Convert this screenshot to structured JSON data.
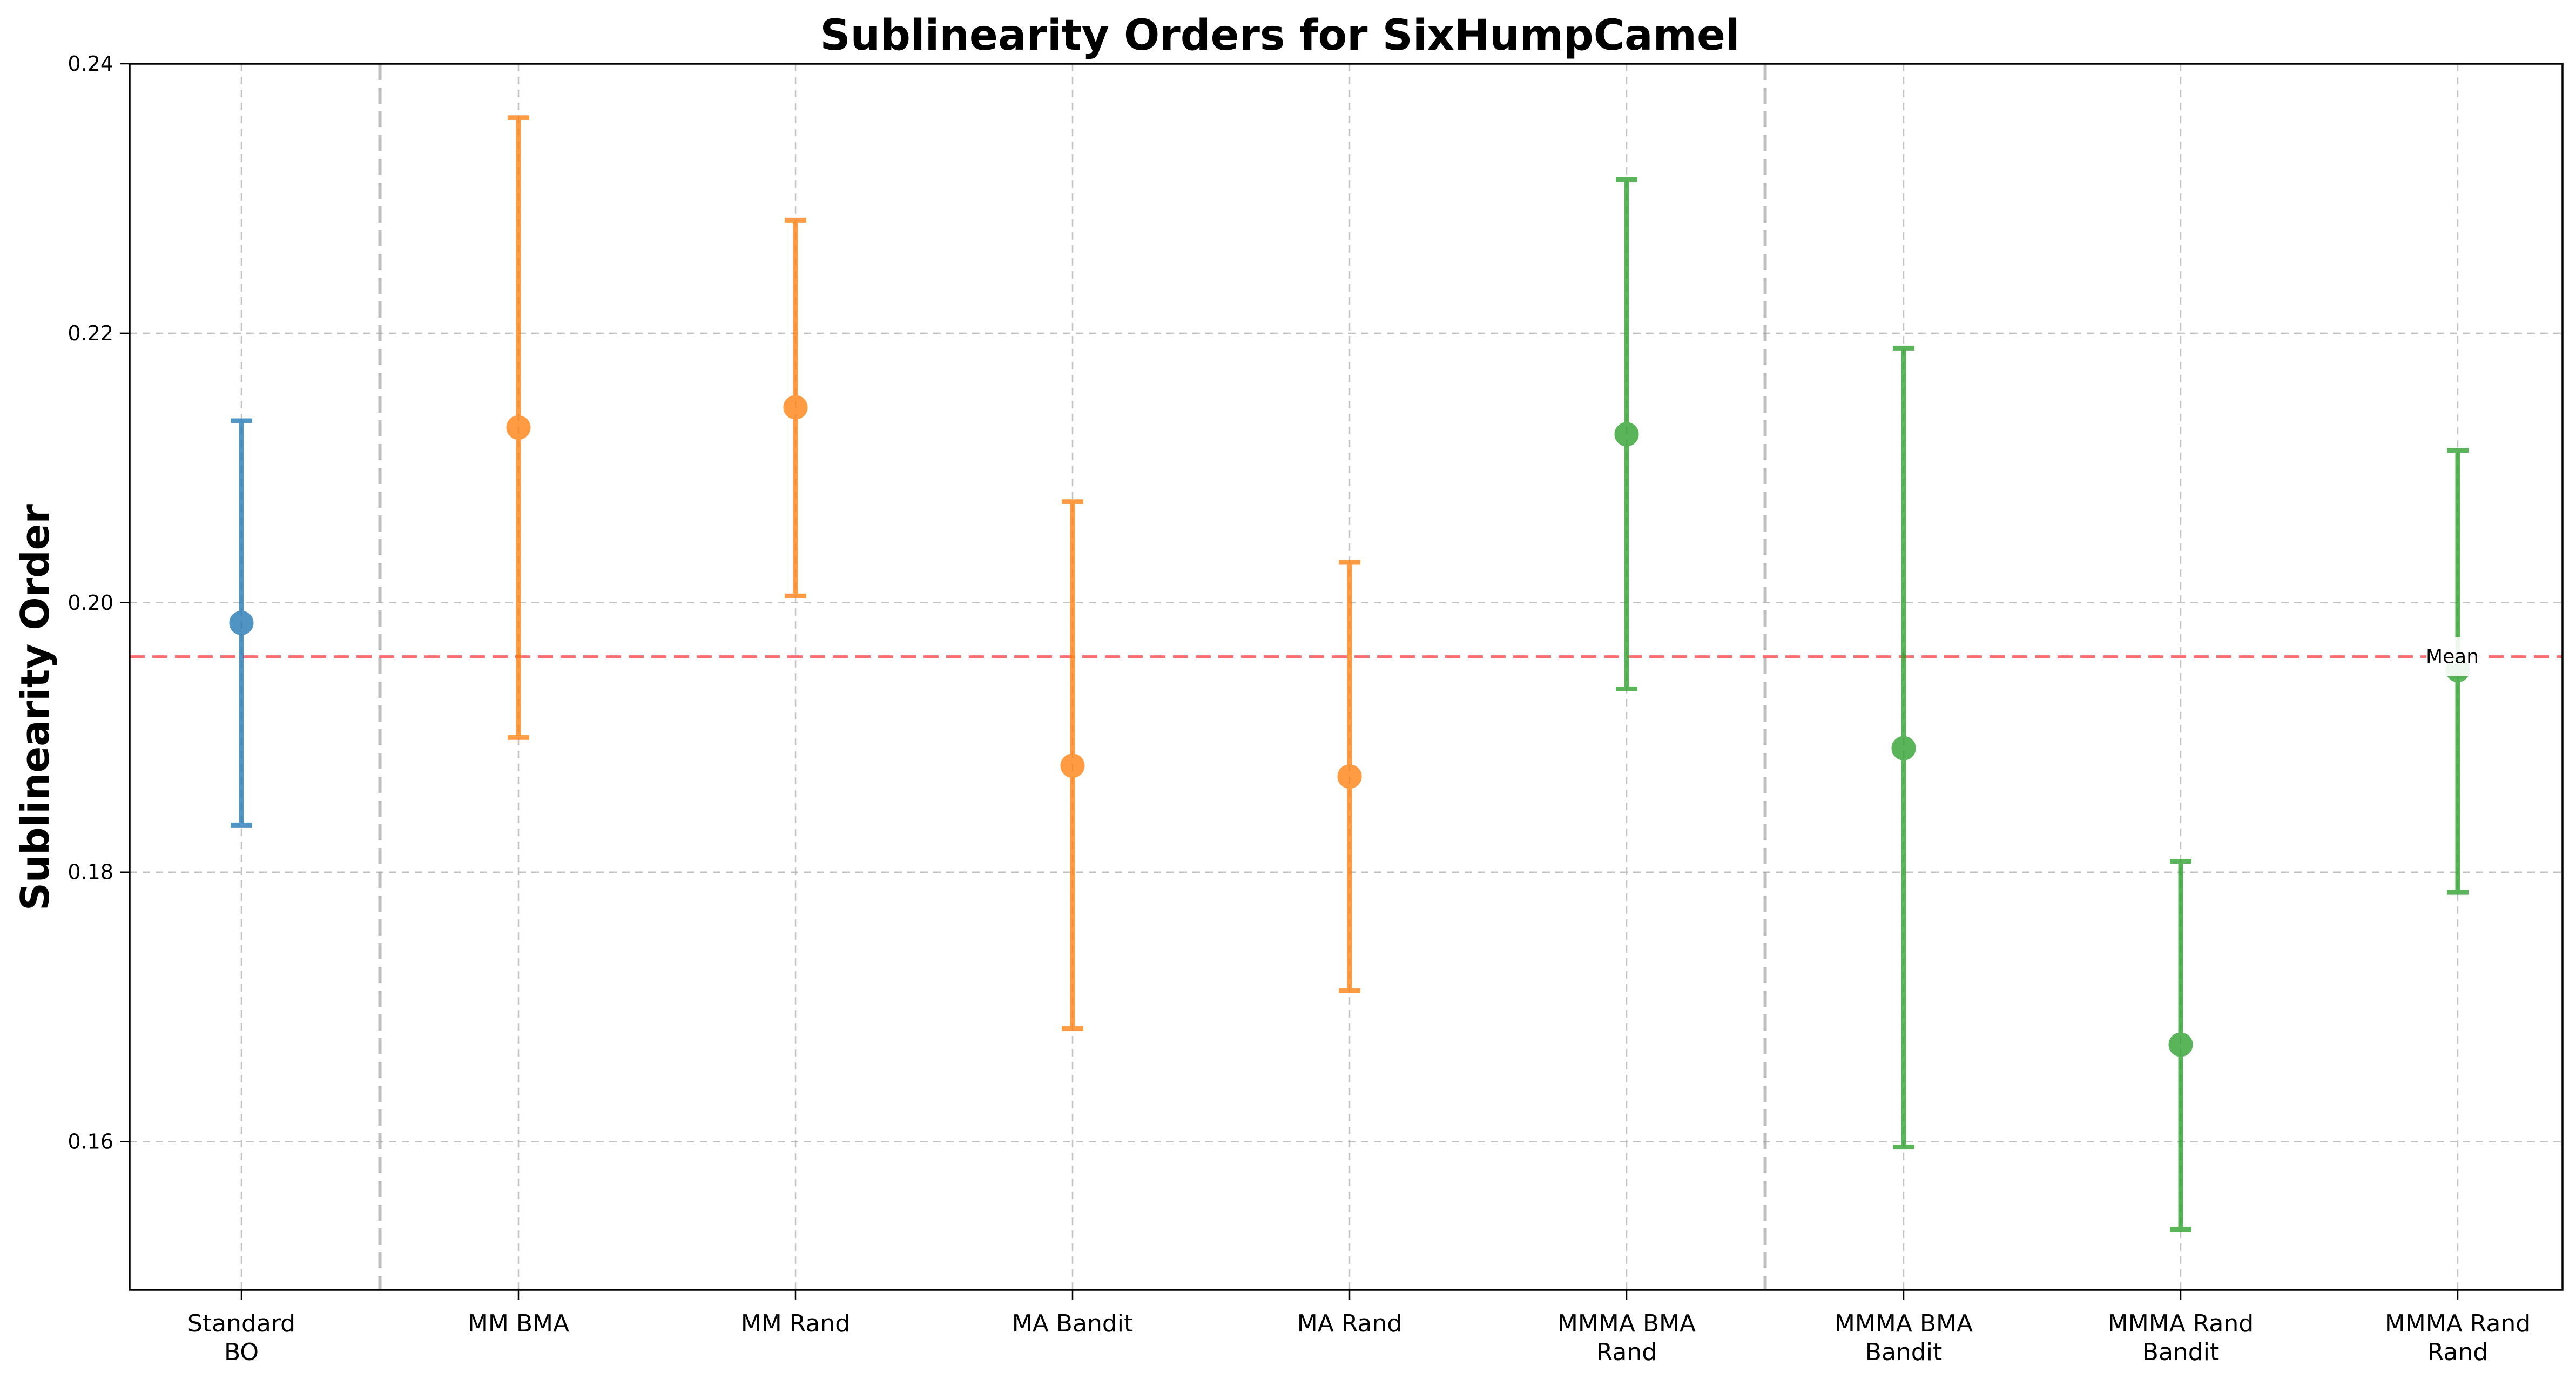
{
  "chart_data": {
    "type": "scatter",
    "title": "Sublinearity Orders for SixHumpCamel",
    "xlabel": "",
    "ylabel": "Sublinearity Order",
    "ylim": [
      0.149,
      0.24
    ],
    "yticks": [
      "0.16",
      "0.18",
      "0.20",
      "0.22",
      "0.24"
    ],
    "ytick_values": [
      0.16,
      0.18,
      0.2,
      0.22,
      0.24
    ],
    "grid": true,
    "mean_line": {
      "value": 0.196,
      "label": "Mean",
      "color": "#ff6f6f"
    },
    "group_separators_after_index": [
      0,
      5
    ],
    "colors": {
      "blue": "#1f77b4",
      "orange": "#ff7f0e",
      "green": "#2ca02c"
    },
    "points": [
      {
        "label_line1": "Standard",
        "label_line2": "BO",
        "mean": 0.1985,
        "lower": 0.1835,
        "upper": 0.2135,
        "color": "#1f77b4"
      },
      {
        "label_line1": "MM BMA",
        "label_line2": "",
        "mean": 0.213,
        "lower": 0.19,
        "upper": 0.236,
        "color": "#ff7f0e"
      },
      {
        "label_line1": "MM Rand",
        "label_line2": "",
        "mean": 0.2145,
        "lower": 0.2005,
        "upper": 0.2284,
        "color": "#ff7f0e"
      },
      {
        "label_line1": "MA Bandit",
        "label_line2": "",
        "mean": 0.1879,
        "lower": 0.1684,
        "upper": 0.2075,
        "color": "#ff7f0e"
      },
      {
        "label_line1": "MA Rand",
        "label_line2": "",
        "mean": 0.1871,
        "lower": 0.1712,
        "upper": 0.203,
        "color": "#ff7f0e"
      },
      {
        "label_line1": "MMMA BMA",
        "label_line2": "Rand",
        "mean": 0.2125,
        "lower": 0.1936,
        "upper": 0.2314,
        "color": "#2ca02c"
      },
      {
        "label_line1": "MMMA BMA",
        "label_line2": "Bandit",
        "mean": 0.1892,
        "lower": 0.1596,
        "upper": 0.2189,
        "color": "#2ca02c"
      },
      {
        "label_line1": "MMMA Rand",
        "label_line2": "Bandit",
        "mean": 0.1672,
        "lower": 0.1535,
        "upper": 0.1808,
        "color": "#2ca02c"
      },
      {
        "label_line1": "MMMA Rand",
        "label_line2": "Rand",
        "mean": 0.195,
        "lower": 0.1785,
        "upper": 0.2113,
        "color": "#2ca02c"
      }
    ]
  }
}
